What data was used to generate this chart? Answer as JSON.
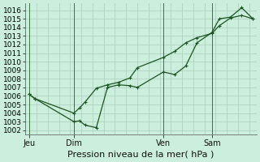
{
  "title": "Pression niveau de la mer( hPa )",
  "bg_color": "#cceedd",
  "grid_color": "#aaccbb",
  "line_color": "#1a5520",
  "ylim": [
    1001.5,
    1016.8
  ],
  "yticks": [
    1002,
    1003,
    1004,
    1005,
    1006,
    1007,
    1008,
    1009,
    1010,
    1011,
    1012,
    1013,
    1014,
    1015,
    1016
  ],
  "xtick_labels": [
    "Jeu",
    "Dim",
    "Ven",
    "Sam"
  ],
  "xtick_positions": [
    2,
    26,
    74,
    100
  ],
  "vline_positions": [
    2,
    26,
    74,
    100
  ],
  "series1_x": [
    2,
    5,
    26,
    29,
    32,
    38,
    44,
    50,
    56,
    60,
    74,
    80,
    86,
    92,
    100,
    104,
    110,
    116,
    122
  ],
  "series1_y": [
    1006.2,
    1005.7,
    1003.0,
    1003.1,
    1002.6,
    1002.3,
    1007.0,
    1007.3,
    1007.2,
    1007.0,
    1008.8,
    1008.5,
    1009.5,
    1012.2,
    1013.4,
    1015.0,
    1015.2,
    1016.3,
    1015.0
  ],
  "series2_x": [
    2,
    5,
    26,
    29,
    32,
    38,
    44,
    50,
    56,
    60,
    74,
    80,
    86,
    92,
    100,
    104,
    110,
    116,
    122
  ],
  "series2_y": [
    1006.2,
    1005.7,
    1004.0,
    1004.6,
    1005.3,
    1006.9,
    1007.3,
    1007.6,
    1008.1,
    1009.3,
    1010.5,
    1011.2,
    1012.2,
    1012.8,
    1013.3,
    1014.2,
    1015.1,
    1015.4,
    1015.0
  ],
  "xlim": [
    0,
    124
  ],
  "ylabel_fontsize": 6.5,
  "xlabel_fontsize": 8,
  "xtick_fontsize": 7,
  "lw": 0.9
}
